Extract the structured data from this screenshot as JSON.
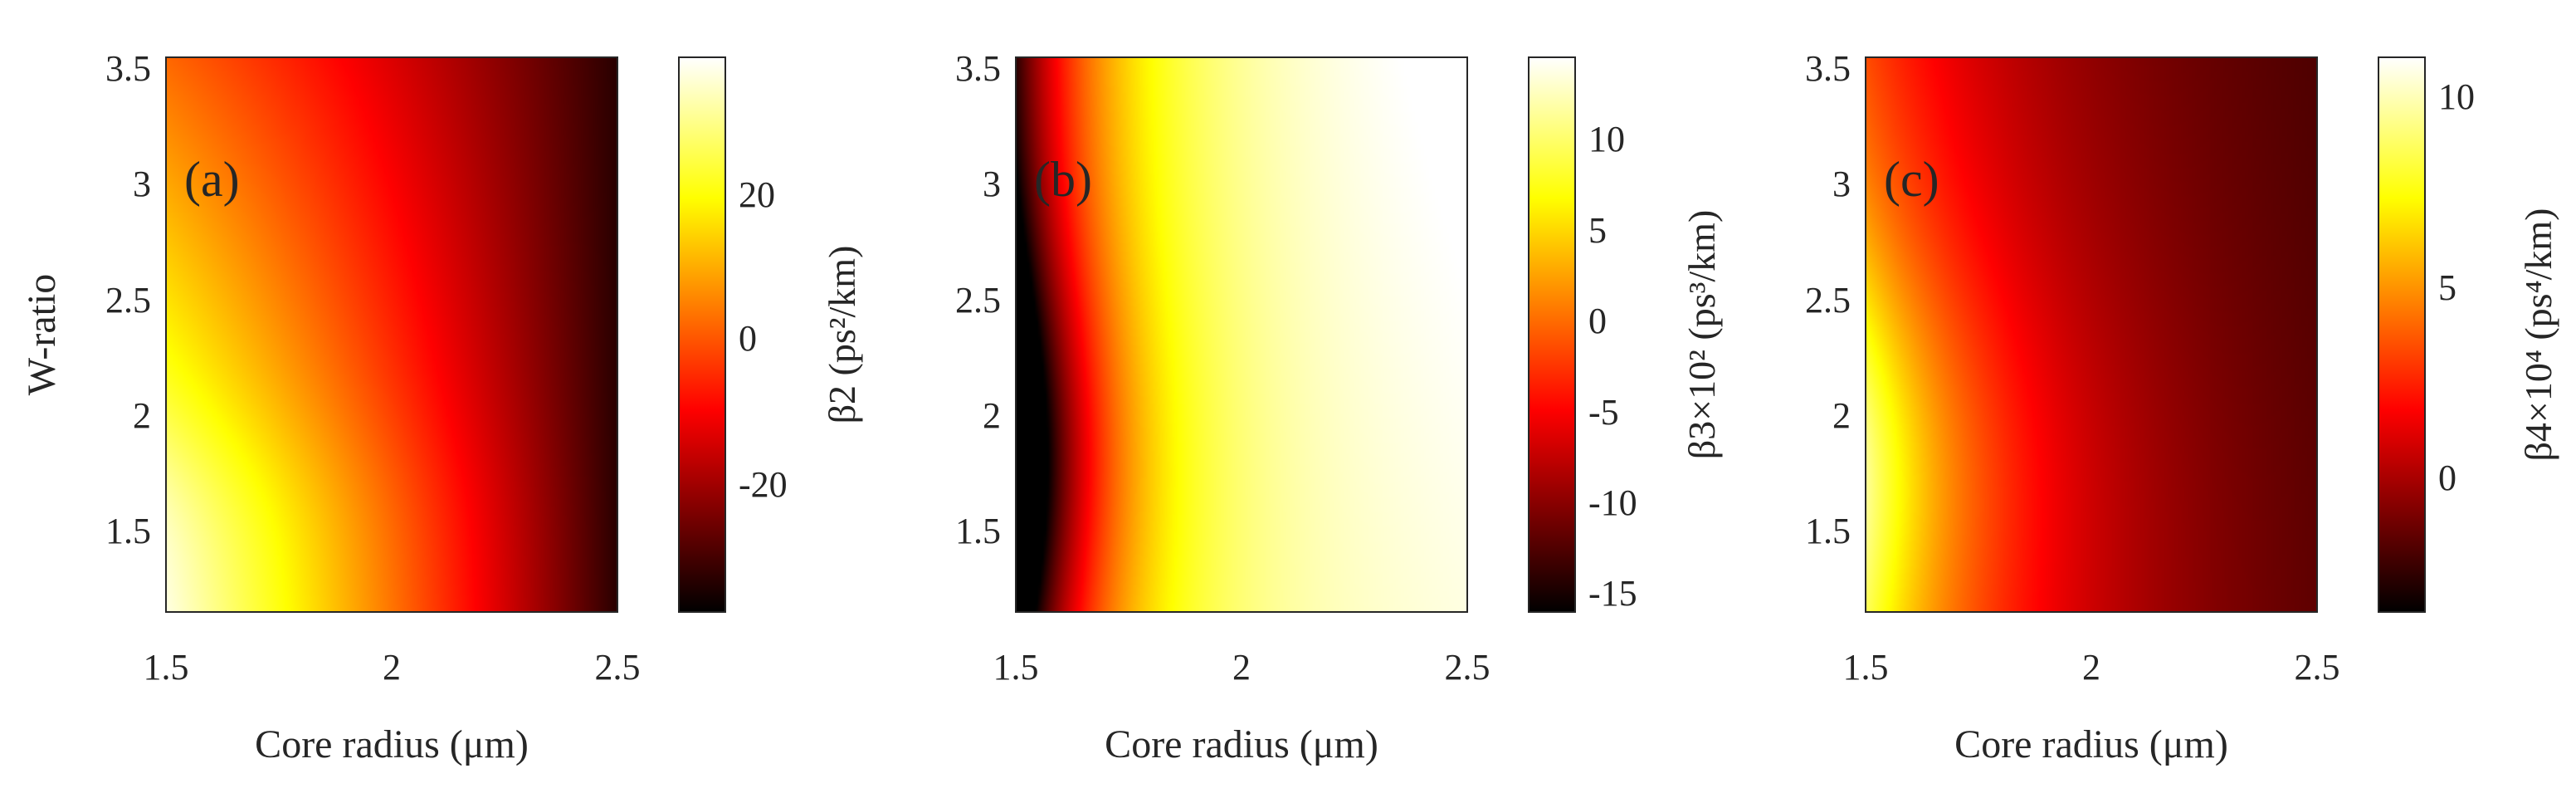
{
  "chart_data": [
    {
      "type": "heatmap",
      "panel_label": "(a)",
      "xlabel": "Core radius  (μm)",
      "ylabel": "W-ratio",
      "xlim": [
        1.5,
        2.5
      ],
      "ylim": [
        1.1,
        3.5
      ],
      "xticks": [
        "1.5",
        "2",
        "2.5"
      ],
      "yticks": [
        "1.5",
        "2",
        "2.5",
        "3",
        "3.5"
      ],
      "colormap": "hot",
      "colorbar": {
        "label": "β2 (ps²/km)",
        "range": [
          -35,
          37
        ],
        "ticks": [
          "-20",
          "0",
          "20"
        ],
        "tick_values": [
          -20,
          0,
          20
        ]
      },
      "field_description": "values approx. 35 at core radius 1.5, W-ratio 1.5 decreasing to approx. -35 at core radius 2.5"
    },
    {
      "type": "heatmap",
      "panel_label": "(b)",
      "xlabel": "Core radius  (μm)",
      "ylabel": "",
      "xlim": [
        1.5,
        2.5
      ],
      "ylim": [
        1.1,
        3.5
      ],
      "xticks": [
        "1.5",
        "2",
        "2.5"
      ],
      "yticks": [
        "1.5",
        "2",
        "2.5",
        "3",
        "3.5"
      ],
      "colormap": "hot",
      "colorbar": {
        "label": "β3×10² (ps³/km)",
        "range": [
          -17,
          13.5
        ],
        "ticks": [
          "-15",
          "-10",
          "-5",
          "0",
          "5",
          "10"
        ],
        "tick_values": [
          -15,
          -10,
          -5,
          0,
          5,
          10
        ]
      },
      "field_description": "minimum approx. -17 at core radius 1.5, W-ratio 1.7 rising to approx. 13 at core radius 2.5"
    },
    {
      "type": "heatmap",
      "panel_label": "(c)",
      "xlabel": "Core radius  (μm)",
      "ylabel": "",
      "xlim": [
        1.5,
        2.5
      ],
      "ylim": [
        1.1,
        3.5
      ],
      "xticks": [
        "1.5",
        "2",
        "2.5"
      ],
      "yticks": [
        "1.5",
        "2",
        "2.5",
        "3",
        "3.5"
      ],
      "colormap": "hot",
      "colorbar": {
        "label": "β4×10⁴ (ps⁴/km)",
        "range": [
          -3.5,
          11
        ],
        "ticks": [
          "0",
          "5",
          "10"
        ],
        "tick_values": [
          0,
          5,
          10
        ]
      },
      "field_description": "maximum approx. 11 at core radius 1.5, W-ratio 1.8 decreasing to approx. -3.5 at core radius 2.5"
    }
  ]
}
